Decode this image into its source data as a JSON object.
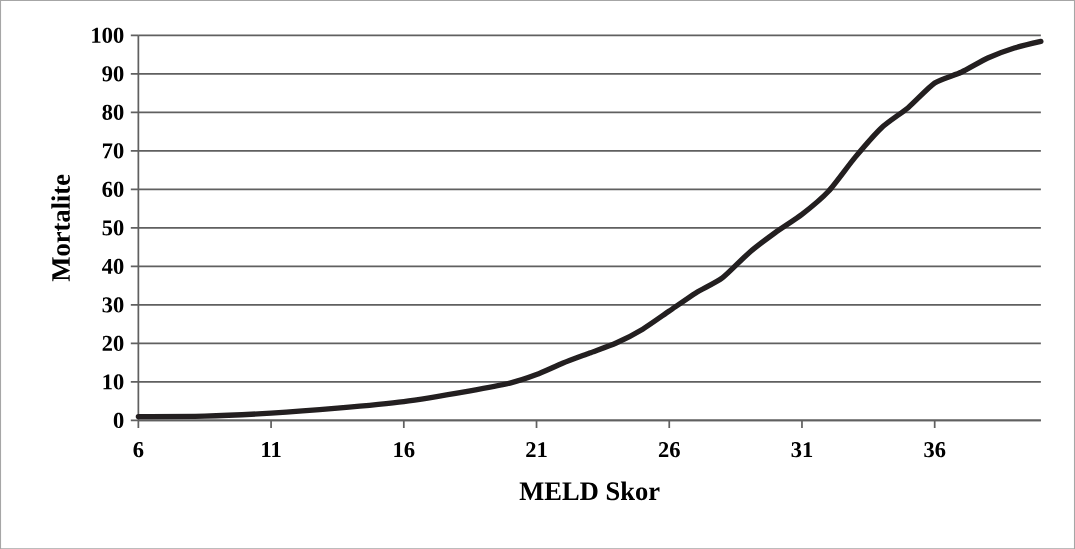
{
  "chart_data": {
    "type": "line",
    "xlabel": "MELD Skor",
    "ylabel": "Mortalite",
    "x": [
      6,
      8.5,
      11,
      13.5,
      16,
      18.5,
      20,
      21,
      22,
      23,
      24,
      25,
      26,
      27,
      28,
      29,
      30,
      31,
      32,
      33,
      34,
      35,
      36,
      37,
      38,
      39,
      40
    ],
    "series": [
      {
        "color": "#231f20",
        "values": [
          1,
          1.1,
          1.9,
          3.2,
          4.9,
          7.7,
          9.7,
          11.9,
          14.9,
          17.5,
          20.1,
          23.7,
          28.4,
          33.1,
          37,
          43.5,
          48.8,
          53.5,
          59.5,
          68.3,
          76,
          81.2,
          87.6,
          90.4,
          94.1,
          96.7,
          98.4
        ]
      }
    ],
    "xlim": [
      6,
      40
    ],
    "xticks": [
      6,
      11,
      16,
      21,
      26,
      31,
      36
    ],
    "ylim": [
      0,
      100
    ],
    "yticks": [
      0,
      10,
      20,
      30,
      40,
      50,
      60,
      70,
      80,
      90,
      100
    ],
    "grid": "y",
    "marker": "none",
    "line_style": "solid"
  }
}
